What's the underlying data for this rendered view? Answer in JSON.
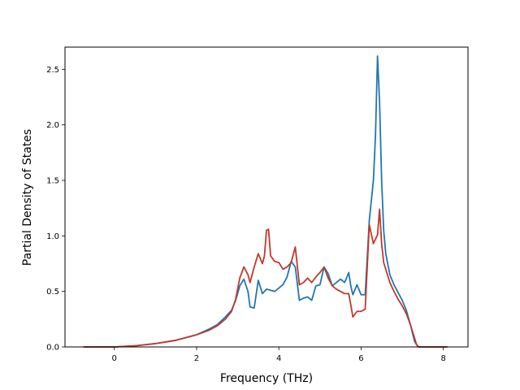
{
  "chart_data": {
    "type": "line",
    "title": "",
    "xlabel": "Frequency (THz)",
    "ylabel": "Partial Density of States",
    "xlim": [
      -1.2,
      8.6
    ],
    "ylim": [
      0,
      2.7
    ],
    "xticks": [
      0,
      2,
      4,
      6,
      8
    ],
    "yticks": [
      0.0,
      0.5,
      1.0,
      1.5,
      2.0,
      2.5
    ],
    "xtick_labels": [
      "0",
      "2",
      "4",
      "6",
      "8"
    ],
    "ytick_labels": [
      "0.0",
      "0.5",
      "1.0",
      "1.5",
      "2.0",
      "2.5"
    ],
    "grid": false,
    "legend": "none",
    "series": [
      {
        "color": "#1f77b4",
        "x": [
          -0.75,
          0,
          0.5,
          1.0,
          1.5,
          2.0,
          2.3,
          2.5,
          2.7,
          2.85,
          2.95,
          3.05,
          3.15,
          3.25,
          3.3,
          3.4,
          3.5,
          3.6,
          3.7,
          3.8,
          3.9,
          4.0,
          4.1,
          4.2,
          4.3,
          4.4,
          4.5,
          4.6,
          4.7,
          4.8,
          4.9,
          5.0,
          5.1,
          5.2,
          5.3,
          5.4,
          5.5,
          5.6,
          5.7,
          5.75,
          5.8,
          5.9,
          6.0,
          6.1,
          6.2,
          6.3,
          6.35,
          6.4,
          6.45,
          6.5,
          6.55,
          6.6,
          6.7,
          6.8,
          6.9,
          7.0,
          7.1,
          7.2,
          7.3,
          7.35,
          7.4,
          7.5,
          8.1
        ],
        "values": [
          0.0,
          0.0,
          0.01,
          0.03,
          0.06,
          0.11,
          0.16,
          0.2,
          0.27,
          0.33,
          0.42,
          0.55,
          0.61,
          0.5,
          0.36,
          0.35,
          0.6,
          0.48,
          0.52,
          0.51,
          0.5,
          0.53,
          0.56,
          0.63,
          0.77,
          0.72,
          0.42,
          0.44,
          0.45,
          0.42,
          0.55,
          0.56,
          0.72,
          0.66,
          0.55,
          0.58,
          0.61,
          0.58,
          0.67,
          0.55,
          0.47,
          0.56,
          0.47,
          0.47,
          1.14,
          1.5,
          1.9,
          2.62,
          2.2,
          1.5,
          1.05,
          0.84,
          0.65,
          0.56,
          0.49,
          0.42,
          0.33,
          0.2,
          0.05,
          0.02,
          0.0,
          0.0,
          0.0
        ]
      },
      {
        "color": "#c0392b",
        "x": [
          -0.75,
          0,
          0.5,
          1.0,
          1.5,
          2.0,
          2.3,
          2.5,
          2.7,
          2.85,
          2.95,
          3.05,
          3.15,
          3.25,
          3.3,
          3.4,
          3.5,
          3.6,
          3.65,
          3.7,
          3.75,
          3.8,
          3.9,
          4.0,
          4.1,
          4.2,
          4.3,
          4.4,
          4.5,
          4.6,
          4.7,
          4.8,
          4.9,
          5.0,
          5.1,
          5.2,
          5.3,
          5.4,
          5.5,
          5.6,
          5.7,
          5.75,
          5.8,
          5.9,
          6.0,
          6.1,
          6.2,
          6.3,
          6.35,
          6.4,
          6.45,
          6.5,
          6.55,
          6.6,
          6.7,
          6.8,
          6.9,
          7.0,
          7.1,
          7.2,
          7.3,
          7.35,
          7.4,
          7.5,
          8.1
        ],
        "values": [
          0.0,
          0.0,
          0.01,
          0.03,
          0.06,
          0.11,
          0.15,
          0.19,
          0.25,
          0.32,
          0.43,
          0.62,
          0.72,
          0.65,
          0.58,
          0.72,
          0.84,
          0.75,
          0.82,
          1.05,
          1.06,
          0.82,
          0.77,
          0.76,
          0.7,
          0.72,
          0.76,
          0.9,
          0.56,
          0.58,
          0.62,
          0.58,
          0.63,
          0.67,
          0.72,
          0.62,
          0.55,
          0.52,
          0.5,
          0.48,
          0.48,
          0.38,
          0.27,
          0.32,
          0.32,
          0.34,
          1.1,
          0.93,
          0.97,
          1.01,
          1.24,
          0.93,
          0.76,
          0.7,
          0.58,
          0.5,
          0.43,
          0.37,
          0.3,
          0.2,
          0.08,
          0.02,
          0.0,
          0.0,
          0.0
        ]
      }
    ]
  }
}
